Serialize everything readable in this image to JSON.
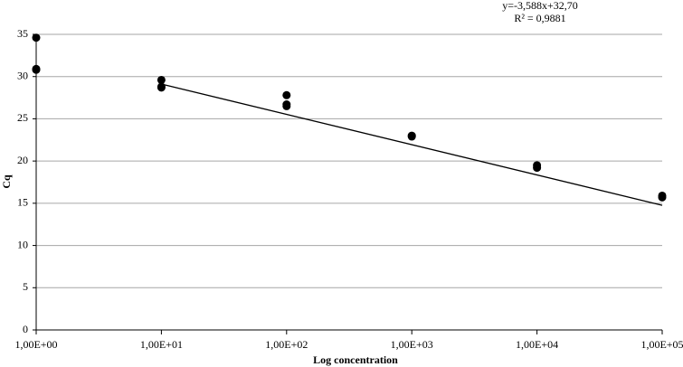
{
  "chart_data": {
    "type": "scatter",
    "x_label": "Log concentration",
    "y_label": "Cq",
    "x_scale": "log",
    "grid": true,
    "xlim": [
      1,
      100000
    ],
    "ylim": [
      0,
      35
    ],
    "xticks": [
      {
        "value": 1,
        "label": "1,00E+00"
      },
      {
        "value": 10,
        "label": "1,00E+01"
      },
      {
        "value": 100,
        "label": "1,00E+02"
      },
      {
        "value": 1000,
        "label": "1,00E+03"
      },
      {
        "value": 10000,
        "label": "1,00E+04"
      },
      {
        "value": 100000,
        "label": "1,00E+05"
      }
    ],
    "yticks": [
      0,
      5,
      10,
      15,
      20,
      25,
      30,
      35
    ],
    "series": [
      {
        "color": "#000000",
        "x": [
          1,
          1,
          1,
          10,
          10,
          10,
          100,
          100,
          100,
          1000,
          1000,
          10000,
          10000,
          100000,
          100000
        ],
        "values": [
          34.6,
          30.9,
          30.8,
          29.6,
          28.8,
          28.7,
          27.8,
          26.7,
          26.5,
          23.0,
          22.9,
          19.5,
          19.2,
          15.9,
          15.7
        ]
      }
    ],
    "trendline": {
      "slope": -3.588,
      "intercept": 32.7,
      "color": "#000000",
      "equation": "y=-3,588x+32,70",
      "r2": "R² = 0,9881"
    }
  }
}
